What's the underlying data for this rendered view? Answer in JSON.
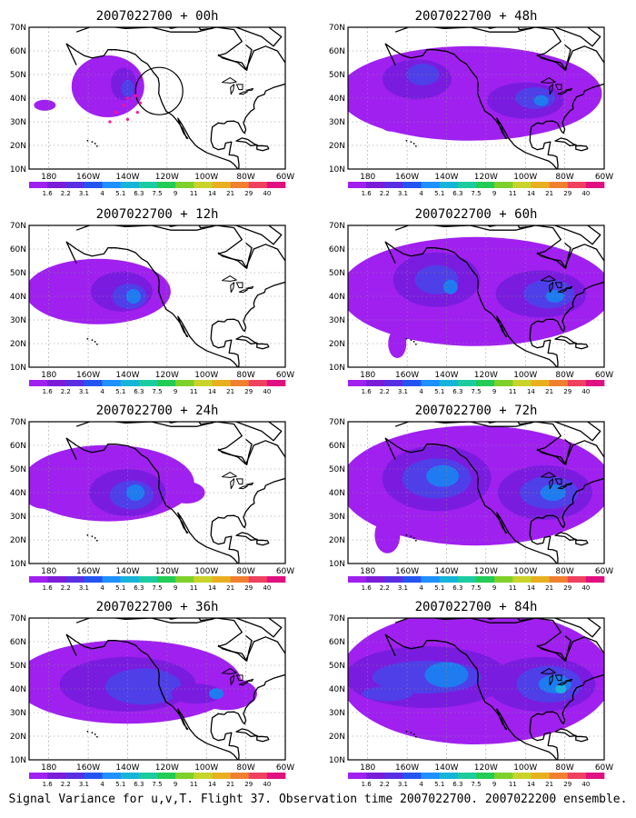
{
  "panels": [
    {
      "title": "2007022700 + 00h",
      "step": 0
    },
    {
      "title": "2007022700 + 48h",
      "step": 4
    },
    {
      "title": "2007022700 + 12h",
      "step": 1
    },
    {
      "title": "2007022700 + 60h",
      "step": 5
    },
    {
      "title": "2007022700 + 24h",
      "step": 2
    },
    {
      "title": "2007022700 + 72h",
      "step": 6
    },
    {
      "title": "2007022700 + 36h",
      "step": 3
    },
    {
      "title": "2007022700 + 84h",
      "step": 7
    }
  ],
  "map": {
    "lat_labels": [
      "70N",
      "60N",
      "50N",
      "40N",
      "30N",
      "20N",
      "10N"
    ],
    "lon_labels": [
      "180",
      "160W",
      "140W",
      "120W",
      "100W",
      "80W",
      "60W"
    ]
  },
  "colorbar": {
    "labels": [
      "1.6",
      "2.2",
      "3.1",
      "4",
      "5.1",
      "6.3",
      "7.5",
      "9",
      "11",
      "14",
      "21",
      "29",
      "40"
    ],
    "colors": [
      "#a020f0",
      "#7b1cd8",
      "#5a2fe3",
      "#2454f0",
      "#1e90ff",
      "#17b4d9",
      "#1ccca0",
      "#22cc55",
      "#7fd02a",
      "#c8d42a",
      "#e8b020",
      "#f08030",
      "#f04060",
      "#e01080"
    ]
  },
  "footer": "Signal Variance for u,v,T. Flight 37. Observation time 2007022700. 2007022200 ensemble."
}
